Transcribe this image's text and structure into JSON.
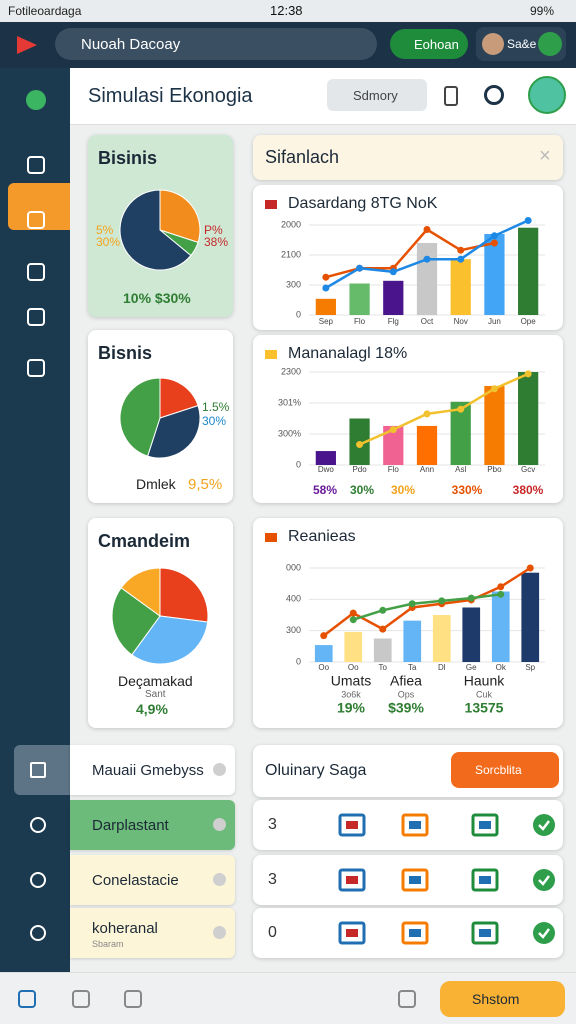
{
  "status_bar": {
    "carrier": "Fotileoardaga",
    "time": "12:38",
    "battery": "99%"
  },
  "top_bar": {
    "search": "Nuoah Dacoay",
    "button": "Eohoan",
    "user": "Sa&e"
  },
  "header": {
    "title": "Simulasi Ekonogia",
    "dropdown": "Sdmory"
  },
  "panel": {
    "title": "Sifanlach"
  },
  "pie_cards": [
    {
      "title": "Bisinis",
      "slices": [
        {
          "value": 30,
          "color": "#f28c1c"
        },
        {
          "value": 6,
          "color": "#43a047"
        },
        {
          "value": 64,
          "color": "#1f3f63"
        }
      ],
      "labels": [
        {
          "text": "5%",
          "color": "#f2a31c"
        },
        {
          "text": "30%",
          "color": "#f2a31c"
        },
        {
          "text": "P%",
          "color": "#c62828"
        },
        {
          "text": "38%",
          "color": "#c62828"
        }
      ],
      "footer": [
        {
          "text": "10% $30%",
          "color": "#2e7d32"
        }
      ]
    },
    {
      "title": "Bisnis",
      "slices": [
        {
          "value": 20,
          "color": "#e8401c"
        },
        {
          "value": 35,
          "color": "#1f3f63"
        },
        {
          "value": 45,
          "color": "#43a047"
        }
      ],
      "labels": [
        {
          "text": "1.5%",
          "color": "#2e7d32"
        },
        {
          "text": "30%",
          "color": "#1e88c8"
        }
      ],
      "footer": [
        {
          "text": "Dmlek",
          "color": "#222"
        },
        {
          "text": "9,5%",
          "color": "#f2a31c"
        }
      ]
    },
    {
      "title": "Cmandeim",
      "slices": [
        {
          "value": 27,
          "color": "#e8401c"
        },
        {
          "value": 33,
          "color": "#64b5f6"
        },
        {
          "value": 25,
          "color": "#43a047"
        },
        {
          "value": 15,
          "color": "#f9a825"
        }
      ],
      "labels": [],
      "footer": [
        {
          "text": "Deçamakad",
          "color": "#222"
        },
        {
          "text": "Sant",
          "color": "#666"
        },
        {
          "text": "4,9%",
          "color": "#2e7d32"
        }
      ]
    }
  ],
  "charts": [
    {
      "title": "Dasardang 8TG NoK",
      "icon_color": "#c62828",
      "ylim": [
        0,
        100
      ],
      "tick_labels": [
        "2000",
        "2100",
        "300",
        "0"
      ],
      "categories": [
        "Sep",
        "Flo",
        "Flg",
        "Oct",
        "Nov",
        "Jun",
        "Ope"
      ],
      "bars": [
        {
          "value": 18,
          "color": "#f57c00"
        },
        {
          "value": 35,
          "color": "#66bb6a"
        },
        {
          "value": 38,
          "color": "#4a148c"
        },
        {
          "value": 80,
          "color": "#c8c8c8"
        },
        {
          "value": 62,
          "color": "#fbc02d"
        },
        {
          "value": 90,
          "color": "#42a5f5"
        },
        {
          "value": 97,
          "color": "#2e7d32"
        }
      ],
      "lines": [
        {
          "color": "#e65100",
          "values": [
            42,
            52,
            52,
            95,
            72,
            80,
            null
          ]
        },
        {
          "color": "#1e88e5",
          "values": [
            30,
            52,
            48,
            62,
            62,
            88,
            105
          ]
        }
      ],
      "footer": []
    },
    {
      "title": "Mananalagl 18%",
      "icon_color": "#fbc02d",
      "ylim": [
        0,
        100
      ],
      "tick_labels": [
        "2300",
        "301%",
        "300%",
        "0"
      ],
      "categories": [
        "Dwo",
        "Pdo",
        "Flo",
        "Ann",
        "Asl",
        "Pbo",
        "Gcv"
      ],
      "bars": [
        {
          "value": 15,
          "color": "#4a148c"
        },
        {
          "value": 50,
          "color": "#2e7d32"
        },
        {
          "value": 42,
          "color": "#f06292"
        },
        {
          "value": 42,
          "color": "#ff6f00"
        },
        {
          "value": 68,
          "color": "#43a047"
        },
        {
          "value": 85,
          "color": "#f57c00"
        },
        {
          "value": 100,
          "color": "#2e7d32"
        }
      ],
      "lines": [
        {
          "color": "#f2c12e",
          "values": [
            null,
            22,
            38,
            55,
            60,
            82,
            98
          ]
        }
      ],
      "footer": [
        {
          "text": "58%",
          "color": "#6a1b9a"
        },
        {
          "text": "30%",
          "color": "#2e7d32"
        },
        {
          "text": "30%",
          "color": "#f2a31c"
        },
        {
          "text": "330%",
          "color": "#e65100"
        },
        {
          "text": "380%",
          "color": "#c62828"
        }
      ]
    },
    {
      "title": "Reanieas",
      "icon_color": "#e65100",
      "ylim": [
        0,
        100
      ],
      "tick_labels": [
        "000",
        "400",
        "300",
        "0"
      ],
      "categories": [
        "Oo",
        "Oo",
        "To",
        "Ta",
        "Dl",
        "Ge",
        "Ok",
        "Sp"
      ],
      "bars": [
        {
          "value": 18,
          "color": "#64b5f6"
        },
        {
          "value": 32,
          "color": "#ffe082"
        },
        {
          "value": 25,
          "color": "#c8c8c8"
        },
        {
          "value": 44,
          "color": "#64b5f6"
        },
        {
          "value": 50,
          "color": "#ffe082"
        },
        {
          "value": 58,
          "color": "#1e3a6b"
        },
        {
          "value": 75,
          "color": "#64b5f6"
        },
        {
          "value": 95,
          "color": "#1e3a6b"
        }
      ],
      "lines": [
        {
          "color": "#e65100",
          "values": [
            28,
            52,
            35,
            58,
            62,
            66,
            80,
            100
          ]
        },
        {
          "color": "#43a047",
          "values": [
            null,
            45,
            55,
            62,
            65,
            68,
            72,
            null
          ]
        }
      ],
      "footer": [
        {
          "text": "Umats",
          "color": "#222"
        },
        {
          "text": "Afiea",
          "color": "#222"
        },
        {
          "text": "Haunk",
          "color": "#222"
        }
      ],
      "footer_sub": [
        {
          "text": "3o6k",
          "color": "#666"
        },
        {
          "text": "Ops",
          "color": "#666"
        },
        {
          "text": "Cuk",
          "color": "#666"
        }
      ],
      "footer_values": [
        {
          "text": "19%",
          "color": "#2e7d32"
        },
        {
          "text": "$39%",
          "color": "#2e7d32"
        },
        {
          "text": "13575",
          "color": "#2e7d32"
        }
      ]
    }
  ],
  "menu": [
    {
      "label": "Mauaii Gmebyss"
    },
    {
      "label": "Darplastant"
    },
    {
      "label": "Conelastacie"
    },
    {
      "label": "koheranal",
      "sub": "Sbaram"
    }
  ],
  "table": {
    "title": "Oluinary Saga",
    "button": "Sorcblita",
    "rows": [
      "3",
      "3",
      "0"
    ]
  },
  "bottom_nav": {
    "button": "Shstom"
  }
}
